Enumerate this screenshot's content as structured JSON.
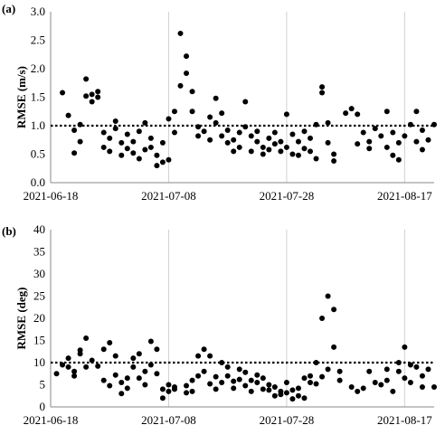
{
  "chart_data": [
    {
      "panel_label": "(a)",
      "type": "scatter",
      "title": "",
      "xlabel": "",
      "ylabel": "RMSE (m/s)",
      "xlim": [
        "2021-06-18",
        "2021-08-22"
      ],
      "ylim": [
        0,
        3
      ],
      "yticks": [
        "0.0",
        "0.5",
        "1.0",
        "1.5",
        "2.0",
        "2.5",
        "3.0"
      ],
      "xticks": [
        "2021-06-18",
        "2021-07-08",
        "2021-07-28",
        "2021-08-17"
      ],
      "reference_line": 1.0,
      "grid": "vertical lines at x ticks",
      "marker_color": "#000000",
      "points": [
        [
          "2021-06-20",
          1.58
        ],
        [
          "2021-06-21",
          1.18
        ],
        [
          "2021-06-22",
          0.92
        ],
        [
          "2021-06-22",
          0.52
        ],
        [
          "2021-06-23",
          0.72
        ],
        [
          "2021-06-23",
          1.02
        ],
        [
          "2021-06-24",
          1.52
        ],
        [
          "2021-06-24",
          1.82
        ],
        [
          "2021-06-25",
          1.55
        ],
        [
          "2021-06-25",
          1.42
        ],
        [
          "2021-06-26",
          1.6
        ],
        [
          "2021-06-26",
          1.5
        ],
        [
          "2021-06-27",
          0.88
        ],
        [
          "2021-06-27",
          0.62
        ],
        [
          "2021-06-28",
          0.78
        ],
        [
          "2021-06-28",
          0.55
        ],
        [
          "2021-06-29",
          0.95
        ],
        [
          "2021-06-29",
          1.08
        ],
        [
          "2021-06-30",
          0.7
        ],
        [
          "2021-06-30",
          0.48
        ],
        [
          "2021-07-01",
          0.85
        ],
        [
          "2021-07-01",
          0.6
        ],
        [
          "2021-07-02",
          0.72
        ],
        [
          "2021-07-02",
          0.52
        ],
        [
          "2021-07-03",
          0.42
        ],
        [
          "2021-07-03",
          0.9
        ],
        [
          "2021-07-04",
          1.05
        ],
        [
          "2021-07-04",
          0.58
        ],
        [
          "2021-07-05",
          0.78
        ],
        [
          "2021-07-05",
          0.62
        ],
        [
          "2021-07-06",
          0.3
        ],
        [
          "2021-07-06",
          0.48
        ],
        [
          "2021-07-07",
          0.36
        ],
        [
          "2021-07-07",
          0.7
        ],
        [
          "2021-07-08",
          1.12
        ],
        [
          "2021-07-08",
          0.4
        ],
        [
          "2021-07-09",
          0.88
        ],
        [
          "2021-07-09",
          1.25
        ],
        [
          "2021-07-10",
          1.7
        ],
        [
          "2021-07-10",
          2.62
        ],
        [
          "2021-07-11",
          2.22
        ],
        [
          "2021-07-11",
          1.92
        ],
        [
          "2021-07-12",
          1.6
        ],
        [
          "2021-07-12",
          1.25
        ],
        [
          "2021-07-13",
          0.98
        ],
        [
          "2021-07-13",
          0.82
        ],
        [
          "2021-07-14",
          0.9
        ],
        [
          "2021-07-15",
          1.15
        ],
        [
          "2021-07-15",
          0.75
        ],
        [
          "2021-07-16",
          1.48
        ],
        [
          "2021-07-16",
          1.05
        ],
        [
          "2021-07-17",
          1.22
        ],
        [
          "2021-07-17",
          0.82
        ],
        [
          "2021-07-18",
          0.7
        ],
        [
          "2021-07-18",
          0.92
        ],
        [
          "2021-07-19",
          0.55
        ],
        [
          "2021-07-19",
          0.75
        ],
        [
          "2021-07-20",
          0.88
        ],
        [
          "2021-07-20",
          0.62
        ],
        [
          "2021-07-21",
          1.42
        ],
        [
          "2021-07-21",
          0.98
        ],
        [
          "2021-07-22",
          0.82
        ],
        [
          "2021-07-22",
          0.55
        ],
        [
          "2021-07-23",
          0.72
        ],
        [
          "2021-07-23",
          0.9
        ],
        [
          "2021-07-24",
          0.62
        ],
        [
          "2021-07-24",
          0.5
        ],
        [
          "2021-07-25",
          0.78
        ],
        [
          "2021-07-25",
          0.58
        ],
        [
          "2021-07-26",
          0.68
        ],
        [
          "2021-07-26",
          0.88
        ],
        [
          "2021-07-27",
          0.55
        ],
        [
          "2021-07-27",
          0.72
        ],
        [
          "2021-07-28",
          1.2
        ],
        [
          "2021-07-28",
          0.62
        ],
        [
          "2021-07-29",
          0.85
        ],
        [
          "2021-07-29",
          0.5
        ],
        [
          "2021-07-30",
          0.72
        ],
        [
          "2021-07-30",
          0.48
        ],
        [
          "2021-07-31",
          0.9
        ],
        [
          "2021-07-31",
          0.6
        ],
        [
          "2021-08-01",
          0.55
        ],
        [
          "2021-08-01",
          0.78
        ],
        [
          "2021-08-02",
          0.42
        ],
        [
          "2021-08-02",
          1.02
        ],
        [
          "2021-08-03",
          1.68
        ],
        [
          "2021-08-03",
          1.58
        ],
        [
          "2021-08-04",
          1.05
        ],
        [
          "2021-08-04",
          0.7
        ],
        [
          "2021-08-05",
          0.38
        ],
        [
          "2021-08-05",
          0.5
        ],
        [
          "2021-08-07",
          1.22
        ],
        [
          "2021-08-08",
          1.3
        ],
        [
          "2021-08-09",
          1.2
        ],
        [
          "2021-08-09",
          0.68
        ],
        [
          "2021-08-10",
          0.88
        ],
        [
          "2021-08-11",
          0.6
        ],
        [
          "2021-08-11",
          0.72
        ],
        [
          "2021-08-12",
          0.95
        ],
        [
          "2021-08-13",
          0.82
        ],
        [
          "2021-08-14",
          1.25
        ],
        [
          "2021-08-14",
          0.62
        ],
        [
          "2021-08-15",
          0.88
        ],
        [
          "2021-08-15",
          0.48
        ],
        [
          "2021-08-16",
          0.7
        ],
        [
          "2021-08-16",
          0.4
        ],
        [
          "2021-08-17",
          0.82
        ],
        [
          "2021-08-18",
          1.02
        ],
        [
          "2021-08-19",
          1.25
        ],
        [
          "2021-08-19",
          0.72
        ],
        [
          "2021-08-20",
          0.92
        ],
        [
          "2021-08-20",
          0.58
        ],
        [
          "2021-08-21",
          0.75
        ],
        [
          "2021-08-22",
          1.02
        ]
      ]
    },
    {
      "panel_label": "(b)",
      "type": "scatter",
      "title": "",
      "xlabel": "",
      "ylabel": "RMSE (deg)",
      "xlim": [
        "2021-06-18",
        "2021-08-22"
      ],
      "ylim": [
        0,
        40
      ],
      "yticks": [
        "0",
        "5",
        "10",
        "15",
        "20",
        "25",
        "30",
        "35",
        "40"
      ],
      "xticks": [
        "2021-06-18",
        "2021-07-08",
        "2021-07-28",
        "2021-08-17"
      ],
      "reference_line": 10,
      "grid": "vertical lines at x ticks",
      "marker_color": "#000000",
      "points": [
        [
          "2021-06-19",
          7.5
        ],
        [
          "2021-06-20",
          9.5
        ],
        [
          "2021-06-21",
          9.0
        ],
        [
          "2021-06-21",
          11.0
        ],
        [
          "2021-06-22",
          7.0
        ],
        [
          "2021-06-22",
          8.0
        ],
        [
          "2021-06-23",
          12.0
        ],
        [
          "2021-06-23",
          12.8
        ],
        [
          "2021-06-24",
          15.5
        ],
        [
          "2021-06-24",
          9.0
        ],
        [
          "2021-06-25",
          10.5
        ],
        [
          "2021-06-26",
          9.2
        ],
        [
          "2021-06-27",
          13.0
        ],
        [
          "2021-06-27",
          6.0
        ],
        [
          "2021-06-28",
          14.5
        ],
        [
          "2021-06-28",
          4.8
        ],
        [
          "2021-06-29",
          7.2
        ],
        [
          "2021-06-29",
          11.5
        ],
        [
          "2021-06-30",
          5.5
        ],
        [
          "2021-06-30",
          3.0
        ],
        [
          "2021-07-01",
          4.2
        ],
        [
          "2021-07-01",
          6.5
        ],
        [
          "2021-07-02",
          11.0
        ],
        [
          "2021-07-02",
          9.0
        ],
        [
          "2021-07-03",
          12.0
        ],
        [
          "2021-07-03",
          6.5
        ],
        [
          "2021-07-04",
          5.0
        ],
        [
          "2021-07-04",
          8.0
        ],
        [
          "2021-07-05",
          9.5
        ],
        [
          "2021-07-05",
          14.8
        ],
        [
          "2021-07-06",
          13.0
        ],
        [
          "2021-07-06",
          7.5
        ],
        [
          "2021-07-07",
          4.0
        ],
        [
          "2021-07-07",
          2.0
        ],
        [
          "2021-07-08",
          5.0
        ],
        [
          "2021-07-08",
          3.5
        ],
        [
          "2021-07-09",
          4.5
        ],
        [
          "2021-07-09",
          4.0
        ],
        [
          "2021-07-11",
          3.2
        ],
        [
          "2021-07-11",
          4.8
        ],
        [
          "2021-07-12",
          6.0
        ],
        [
          "2021-07-12",
          3.5
        ],
        [
          "2021-07-13",
          11.5
        ],
        [
          "2021-07-13",
          7.0
        ],
        [
          "2021-07-14",
          8.0
        ],
        [
          "2021-07-14",
          13.0
        ],
        [
          "2021-07-15",
          11.5
        ],
        [
          "2021-07-15",
          5.2
        ],
        [
          "2021-07-16",
          4.0
        ],
        [
          "2021-07-16",
          6.8
        ],
        [
          "2021-07-17",
          10.0
        ],
        [
          "2021-07-17",
          5.5
        ],
        [
          "2021-07-18",
          9.0
        ],
        [
          "2021-07-18",
          7.0
        ],
        [
          "2021-07-19",
          5.8
        ],
        [
          "2021-07-19",
          4.2
        ],
        [
          "2021-07-20",
          8.5
        ],
        [
          "2021-07-20",
          6.2
        ],
        [
          "2021-07-21",
          7.8
        ],
        [
          "2021-07-21",
          4.8
        ],
        [
          "2021-07-22",
          6.0
        ],
        [
          "2021-07-22",
          3.5
        ],
        [
          "2021-07-23",
          5.5
        ],
        [
          "2021-07-23",
          7.2
        ],
        [
          "2021-07-24",
          4.0
        ],
        [
          "2021-07-24",
          6.5
        ],
        [
          "2021-07-25",
          3.8
        ],
        [
          "2021-07-25",
          5.0
        ],
        [
          "2021-07-26",
          2.5
        ],
        [
          "2021-07-26",
          4.5
        ],
        [
          "2021-07-27",
          3.5
        ],
        [
          "2021-07-27",
          2.8
        ],
        [
          "2021-07-28",
          3.2
        ],
        [
          "2021-07-28",
          5.5
        ],
        [
          "2021-07-29",
          1.8
        ],
        [
          "2021-07-29",
          3.8
        ],
        [
          "2021-07-30",
          2.5
        ],
        [
          "2021-07-30",
          4.2
        ],
        [
          "2021-07-31",
          2.0
        ],
        [
          "2021-07-31",
          6.5
        ],
        [
          "2021-08-01",
          5.5
        ],
        [
          "2021-08-01",
          7.0
        ],
        [
          "2021-08-02",
          10.0
        ],
        [
          "2021-08-02",
          5.2
        ],
        [
          "2021-08-03",
          20.0
        ],
        [
          "2021-08-03",
          6.8
        ],
        [
          "2021-08-04",
          25.0
        ],
        [
          "2021-08-04",
          8.5
        ],
        [
          "2021-08-05",
          22.0
        ],
        [
          "2021-08-05",
          13.5
        ],
        [
          "2021-08-06",
          8.0
        ],
        [
          "2021-08-06",
          6.0
        ],
        [
          "2021-08-08",
          4.5
        ],
        [
          "2021-08-09",
          3.5
        ],
        [
          "2021-08-10",
          4.2
        ],
        [
          "2021-08-11",
          8.0
        ],
        [
          "2021-08-12",
          5.5
        ],
        [
          "2021-08-13",
          5.0
        ],
        [
          "2021-08-14",
          8.5
        ],
        [
          "2021-08-14",
          6.0
        ],
        [
          "2021-08-15",
          3.5
        ],
        [
          "2021-08-16",
          8.0
        ],
        [
          "2021-08-16",
          10.0
        ],
        [
          "2021-08-17",
          13.5
        ],
        [
          "2021-08-17",
          6.5
        ],
        [
          "2021-08-18",
          9.5
        ],
        [
          "2021-08-18",
          5.5
        ],
        [
          "2021-08-19",
          9.0
        ],
        [
          "2021-08-20",
          7.0
        ],
        [
          "2021-08-20",
          4.5
        ],
        [
          "2021-08-21",
          8.5
        ],
        [
          "2021-08-22",
          4.5
        ]
      ]
    }
  ]
}
